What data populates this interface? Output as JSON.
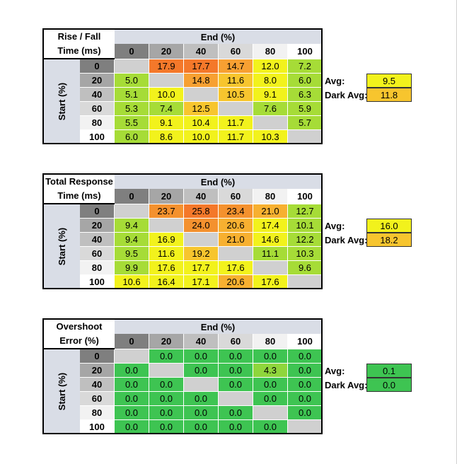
{
  "colors": {
    "header_bg": "#d9dde6",
    "h0": "#7f7f7f",
    "h20": "#a6a6a6",
    "h40": "#bfbfbf",
    "h60": "#d9d9d9",
    "h80": "#f2f2f2",
    "h100": "#ffffff",
    "blank": "#d0d0d0"
  },
  "chart_data": [
    {
      "type": "heatmap",
      "title_line1": "Rise / Fall",
      "title_line2": "Time (ms)",
      "xlabel": "End (%)",
      "ylabel": "Start (%)",
      "columns": [
        "0",
        "20",
        "40",
        "60",
        "80",
        "100"
      ],
      "rows": [
        "0",
        "20",
        "40",
        "60",
        "80",
        "100"
      ],
      "values": [
        [
          null,
          "17.9",
          "17.7",
          "14.7",
          "12.0",
          "7.2"
        ],
        [
          "5.0",
          null,
          "14.8",
          "11.6",
          "8.0",
          "6.0"
        ],
        [
          "5.1",
          "10.0",
          null,
          "10.5",
          "9.1",
          "6.3"
        ],
        [
          "5.3",
          "7.4",
          "12.5",
          null,
          "7.6",
          "5.9"
        ],
        [
          "5.5",
          "9.1",
          "10.4",
          "11.7",
          null,
          "5.7"
        ],
        [
          "6.0",
          "8.6",
          "10.0",
          "11.7",
          "10.3",
          null
        ]
      ],
      "colors": [
        [
          "blank",
          "#f4782a",
          "#f4782a",
          "#f7a032",
          "#f2f21c",
          "#a6dc37"
        ],
        [
          "#a6dc37",
          "blank",
          "#f7a032",
          "#f7c52e",
          "#f2f21c",
          "#a6dc37"
        ],
        [
          "#a6dc37",
          "#f2f21c",
          "blank",
          "#f7c52e",
          "#f2f21c",
          "#a6dc37"
        ],
        [
          "#a6dc37",
          "#a6dc37",
          "#f7c52e",
          "blank",
          "#a6dc37",
          "#a6dc37"
        ],
        [
          "#a6dc37",
          "#f2f21c",
          "#f2f21c",
          "#f2f21c",
          "blank",
          "#a6dc37"
        ],
        [
          "#a6dc37",
          "#f2f21c",
          "#f2f21c",
          "#f2f21c",
          "#f2f21c",
          "blank"
        ]
      ],
      "avg_label": "Avg:",
      "avg_value": "9.5",
      "avg_color": "#f2f21c",
      "dark_avg_label": "Dark Avg:",
      "dark_avg_value": "11.8",
      "dark_avg_color": "#f7c52e"
    },
    {
      "type": "heatmap",
      "title_line1": "Total Response",
      "title_line2": "Time (ms)",
      "xlabel": "End (%)",
      "ylabel": "Start (%)",
      "columns": [
        "0",
        "20",
        "40",
        "60",
        "80",
        "100"
      ],
      "rows": [
        "0",
        "20",
        "40",
        "60",
        "80",
        "100"
      ],
      "values": [
        [
          null,
          "23.7",
          "25.8",
          "23.4",
          "21.0",
          "12.7"
        ],
        [
          "9.4",
          null,
          "24.0",
          "20.6",
          "17.4",
          "10.1"
        ],
        [
          "9.4",
          "16.9",
          null,
          "21.0",
          "14.6",
          "12.2"
        ],
        [
          "9.5",
          "11.6",
          "19.2",
          null,
          "11.1",
          "10.3"
        ],
        [
          "9.9",
          "17.6",
          "17.7",
          "17.6",
          null,
          "9.6"
        ],
        [
          "10.6",
          "16.4",
          "17.1",
          "20.6",
          "17.6",
          null
        ]
      ],
      "colors": [
        [
          "blank",
          "#f4912e",
          "#f4782a",
          "#f4912e",
          "#f7b030",
          "#a6dc37"
        ],
        [
          "#a6dc37",
          "blank",
          "#f4912e",
          "#f7b030",
          "#f2f21c",
          "#a6dc37"
        ],
        [
          "#a6dc37",
          "#f2f21c",
          "blank",
          "#f7b030",
          "#f2f21c",
          "#a6dc37"
        ],
        [
          "#a6dc37",
          "#f2f21c",
          "#f7c52e",
          "blank",
          "#a6dc37",
          "#a6dc37"
        ],
        [
          "#a6dc37",
          "#f2f21c",
          "#f2f21c",
          "#f2f21c",
          "blank",
          "#a6dc37"
        ],
        [
          "#f2f21c",
          "#f2f21c",
          "#f2f21c",
          "#f7b030",
          "#f2f21c",
          "blank"
        ]
      ],
      "avg_label": "Avg:",
      "avg_value": "16.0",
      "avg_color": "#f2f21c",
      "dark_avg_label": "Dark Avg:",
      "dark_avg_value": "18.2",
      "dark_avg_color": "#f7c52e"
    },
    {
      "type": "heatmap",
      "title_line1": "Overshoot",
      "title_line2": "Error (%)",
      "xlabel": "End (%)",
      "ylabel": "Start (%)",
      "columns": [
        "0",
        "20",
        "40",
        "60",
        "80",
        "100"
      ],
      "rows": [
        "0",
        "20",
        "40",
        "60",
        "80",
        "100"
      ],
      "values": [
        [
          null,
          "0.0",
          "0.0",
          "0.0",
          "0.0",
          "0.0"
        ],
        [
          "0.0",
          null,
          "0.0",
          "0.0",
          "4.3",
          "0.0"
        ],
        [
          "0.0",
          "0.0",
          null,
          "0.0",
          "0.0",
          "0.0"
        ],
        [
          "0.0",
          "0.0",
          "0.0",
          null,
          "0.0",
          "0.0"
        ],
        [
          "0.0",
          "0.0",
          "0.0",
          "0.0",
          null,
          "0.0"
        ],
        [
          "0.0",
          "0.0",
          "0.0",
          "0.0",
          "0.0",
          null
        ]
      ],
      "colors": [
        [
          "blank",
          "#3ec452",
          "#3ec452",
          "#3ec452",
          "#3ec452",
          "#3ec452"
        ],
        [
          "#3ec452",
          "blank",
          "#3ec452",
          "#3ec452",
          "#8fd63c",
          "#3ec452"
        ],
        [
          "#3ec452",
          "#3ec452",
          "blank",
          "#3ec452",
          "#3ec452",
          "#3ec452"
        ],
        [
          "#3ec452",
          "#3ec452",
          "#3ec452",
          "blank",
          "#3ec452",
          "#3ec452"
        ],
        [
          "#3ec452",
          "#3ec452",
          "#3ec452",
          "#3ec452",
          "blank",
          "#3ec452"
        ],
        [
          "#3ec452",
          "#3ec452",
          "#3ec452",
          "#3ec452",
          "#3ec452",
          "blank"
        ]
      ],
      "avg_label": "Avg:",
      "avg_value": "0.1",
      "avg_color": "#3ec452",
      "dark_avg_label": "Dark Avg:",
      "dark_avg_value": "0.0",
      "dark_avg_color": "#3ec452"
    }
  ]
}
